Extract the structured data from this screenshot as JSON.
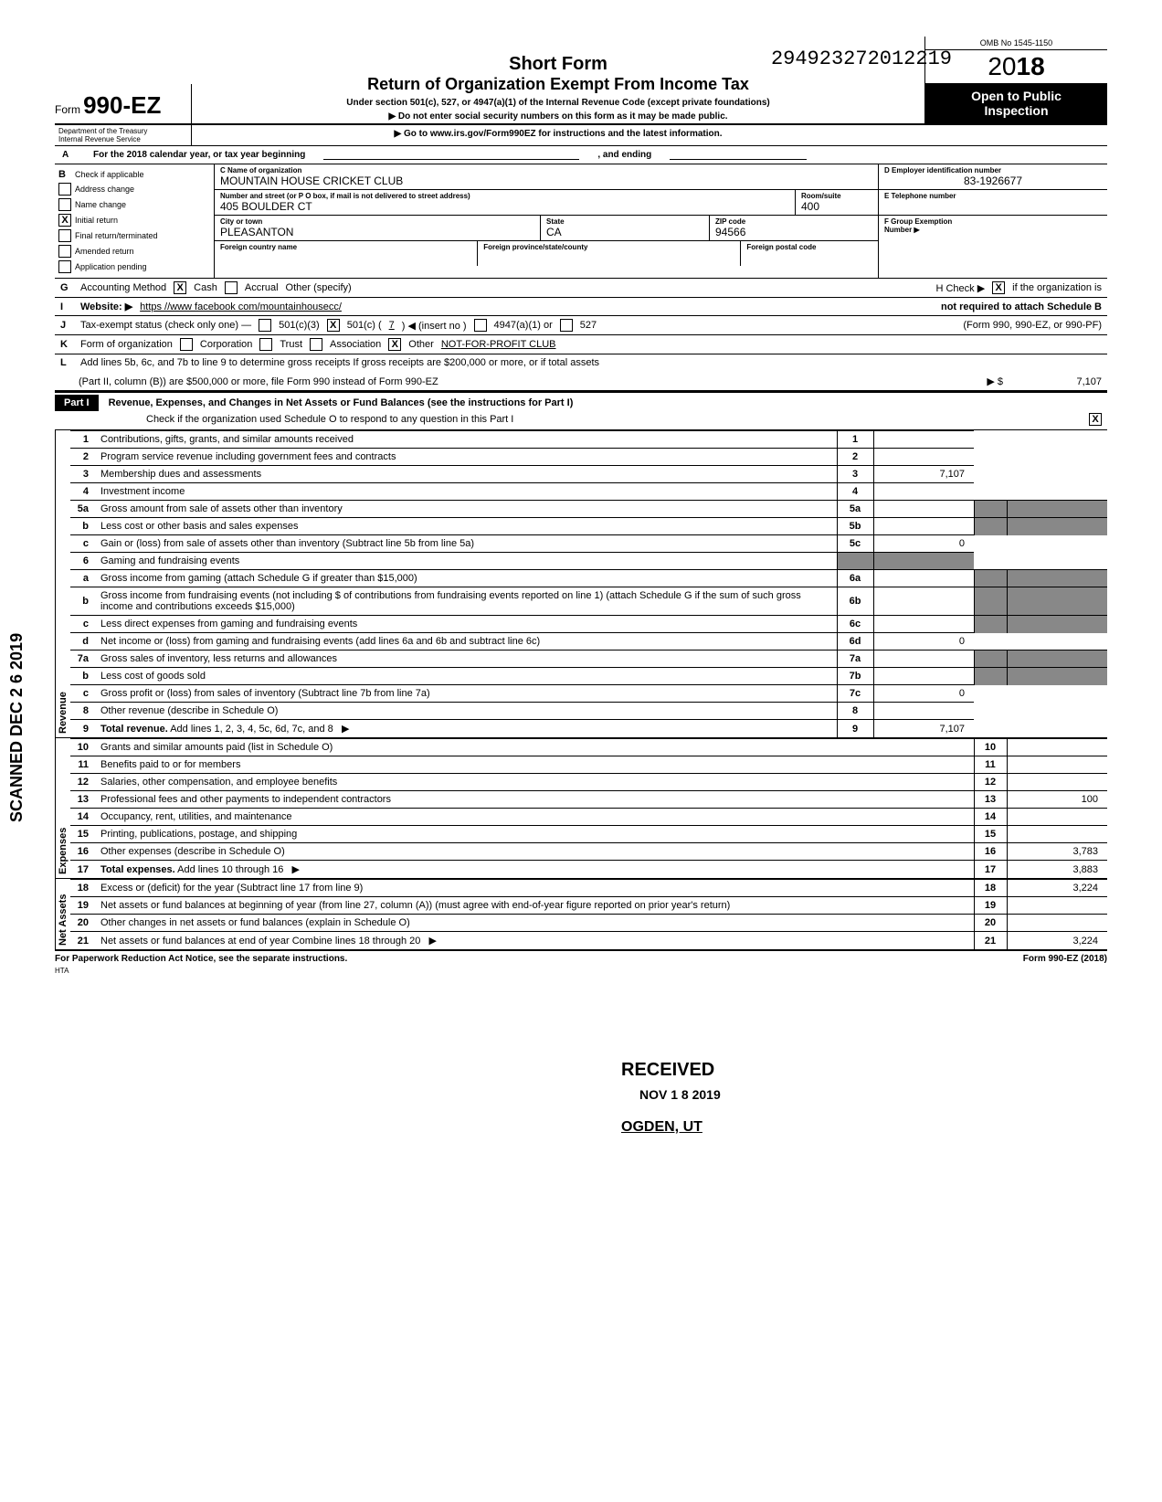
{
  "form": {
    "word": "Form",
    "number": "990-EZ"
  },
  "hand_number": "294923272012219",
  "omb": "OMB No 1545-1150",
  "year_prefix": "20",
  "year_bold": "18",
  "title1": "Short Form",
  "title2": "Return of Organization Exempt From Income Tax",
  "subtitle1": "Under section 501(c), 527, or 4947(a)(1) of the Internal Revenue Code (except private foundations)",
  "subtitle2": "Do not enter social security numbers on this form as it may be made public.",
  "subtitle3": "Go to www.irs.gov/Form990EZ for instructions and the latest information.",
  "black1": "Open to Public",
  "black2": "Inspection",
  "dept": "Department of the Treasury\nInternal Revenue Service",
  "row_a": {
    "letter": "A",
    "text": "For the 2018 calendar year, or tax year beginning",
    "and": ", and ending"
  },
  "col_b": {
    "letter": "B",
    "header": "Check if applicable",
    "items": [
      {
        "checked": false,
        "label": "Address change"
      },
      {
        "checked": false,
        "label": "Name change"
      },
      {
        "checked": true,
        "label": "Initial return"
      },
      {
        "checked": false,
        "label": "Final return/terminated"
      },
      {
        "checked": false,
        "label": "Amended return"
      },
      {
        "checked": false,
        "label": "Application pending"
      }
    ]
  },
  "col_c": {
    "name_label": "C Name of organization",
    "name": "MOUNTAIN HOUSE CRICKET CLUB",
    "addr_label": "Number and street (or P O box, if mail is not delivered to street address)",
    "room_label": "Room/suite",
    "addr": "405 BOULDER CT",
    "room": "400",
    "city_label": "City or town",
    "state_label": "State",
    "zip_label": "ZIP code",
    "city": "PLEASANTON",
    "state": "CA",
    "zip": "94566",
    "fc_label": "Foreign country name",
    "fp_label": "Foreign province/state/county",
    "fpc_label": "Foreign postal code"
  },
  "col_d": {
    "ein_label": "D Employer identification number",
    "ein": "83-1926677",
    "tel_label": "E Telephone number",
    "tel": "",
    "grp_label": "F Group Exemption\nNumber ▶",
    "grp": ""
  },
  "row_g": {
    "letter": "G",
    "label": "Accounting Method",
    "cash": "Cash",
    "accrual": "Accrual",
    "other": "Other (specify)",
    "cash_checked": true
  },
  "row_h": {
    "label": "H Check ▶",
    "checked": true,
    "text1": "if the organization is",
    "text2": "not required to attach Schedule B",
    "text3": "(Form 990, 990-EZ, or 990-PF)"
  },
  "row_i": {
    "letter": "I",
    "label": "Website: ▶",
    "value": "https //www facebook com/mountainhousecc/"
  },
  "row_j": {
    "letter": "J",
    "label": "Tax-exempt status (check only one) —",
    "c3": "501(c)(3)",
    "c": "501(c) (",
    "cnum": "7",
    "cins": ") ◀ (insert no )",
    "a1": "4947(a)(1) or",
    "s527": "527",
    "c_checked": true
  },
  "row_k": {
    "letter": "K",
    "label": "Form of organization",
    "corp": "Corporation",
    "trust": "Trust",
    "assoc": "Association",
    "other": "Other",
    "other_checked": true,
    "other_val": "NOT-FOR-PROFIT CLUB"
  },
  "row_l": {
    "letter": "L",
    "text1": "Add lines 5b, 6c, and 7b to line 9 to determine gross receipts If gross receipts are $200,000 or more, or if total assets",
    "text2": "(Part II, column (B)) are $500,000 or more, file Form 990 instead of Form 990-EZ",
    "arrow": "▶ $",
    "amount": "7,107"
  },
  "part1": {
    "label": "Part I",
    "title": "Revenue, Expenses, and Changes in Net Assets or Fund Balances (see the instructions for Part I)",
    "sub": "Check if the organization used Schedule O to respond to any question in this Part I",
    "sub_checked": true
  },
  "stamps": {
    "received": "RECEIVED",
    "date": "NOV 1 8 2019",
    "ogden": "OGDEN, UT"
  },
  "side_labels": {
    "revenue": "Revenue",
    "expenses": "Expenses",
    "netassets": "Net Assets"
  },
  "lines": {
    "l1": {
      "n": "1",
      "d": "Contributions, gifts, grants, and similar amounts received",
      "box": "1",
      "amt": ""
    },
    "l2": {
      "n": "2",
      "d": "Program service revenue including government fees and contracts",
      "box": "2",
      "amt": ""
    },
    "l3": {
      "n": "3",
      "d": "Membership dues and assessments",
      "box": "3",
      "amt": "7,107"
    },
    "l4": {
      "n": "4",
      "d": "Investment income",
      "box": "4",
      "amt": ""
    },
    "l5a": {
      "n": "5a",
      "d": "Gross amount from sale of assets other than inventory",
      "ib": "5a"
    },
    "l5b": {
      "n": "b",
      "d": "Less cost or other basis and sales expenses",
      "ib": "5b"
    },
    "l5c": {
      "n": "c",
      "d": "Gain or (loss) from sale of assets other than inventory (Subtract line 5b from line 5a)",
      "box": "5c",
      "amt": "0"
    },
    "l6": {
      "n": "6",
      "d": "Gaming and fundraising events"
    },
    "l6a": {
      "n": "a",
      "d": "Gross income from gaming (attach Schedule G if greater than $15,000)",
      "ib": "6a"
    },
    "l6b": {
      "n": "b",
      "d": "Gross income from fundraising events (not including   $                  of contributions from fundraising events reported on line 1) (attach Schedule G if the sum of such gross income and contributions exceeds $15,000)",
      "ib": "6b"
    },
    "l6c": {
      "n": "c",
      "d": "Less direct expenses from gaming and fundraising events",
      "ib": "6c"
    },
    "l6d": {
      "n": "d",
      "d": "Net income or (loss) from gaming and fundraising events (add lines 6a and 6b and subtract line 6c)",
      "box": "6d",
      "amt": "0"
    },
    "l7a": {
      "n": "7a",
      "d": "Gross sales of inventory, less returns and allowances",
      "ib": "7a"
    },
    "l7b": {
      "n": "b",
      "d": "Less cost of goods sold",
      "ib": "7b"
    },
    "l7c": {
      "n": "c",
      "d": "Gross profit or (loss) from sales of inventory (Subtract line 7b from line 7a)",
      "box": "7c",
      "amt": "0"
    },
    "l8": {
      "n": "8",
      "d": "Other revenue (describe in Schedule O)",
      "box": "8",
      "amt": ""
    },
    "l9": {
      "n": "9",
      "d": "Total revenue. Add lines 1, 2, 3, 4, 5c, 6d, 7c, and 8",
      "box": "9",
      "amt": "7,107",
      "arrow": true,
      "boldstart": "Total revenue."
    },
    "l10": {
      "n": "10",
      "d": "Grants and similar amounts paid (list in Schedule O)",
      "box": "10",
      "amt": ""
    },
    "l11": {
      "n": "11",
      "d": "Benefits paid to or for members",
      "box": "11",
      "amt": ""
    },
    "l12": {
      "n": "12",
      "d": "Salaries, other compensation, and employee benefits",
      "box": "12",
      "amt": ""
    },
    "l13": {
      "n": "13",
      "d": "Professional fees and other payments to independent contractors",
      "box": "13",
      "amt": "100"
    },
    "l14": {
      "n": "14",
      "d": "Occupancy, rent, utilities, and maintenance",
      "box": "14",
      "amt": ""
    },
    "l15": {
      "n": "15",
      "d": "Printing, publications, postage, and shipping",
      "box": "15",
      "amt": ""
    },
    "l16": {
      "n": "16",
      "d": "Other expenses (describe in Schedule O)",
      "box": "16",
      "amt": "3,783"
    },
    "l17": {
      "n": "17",
      "d": "Total expenses. Add lines 10 through 16",
      "box": "17",
      "amt": "3,883",
      "arrow": true,
      "boldstart": "Total expenses."
    },
    "l18": {
      "n": "18",
      "d": "Excess or (deficit) for the year (Subtract line 17 from line 9)",
      "box": "18",
      "amt": "3,224"
    },
    "l19": {
      "n": "19",
      "d": "Net assets or fund balances at beginning of year (from line 27, column (A)) (must agree with end-of-year figure reported on prior year's return)",
      "box": "19",
      "amt": ""
    },
    "l20": {
      "n": "20",
      "d": "Other changes in net assets or fund balances (explain in Schedule O)",
      "box": "20",
      "amt": ""
    },
    "l21": {
      "n": "21",
      "d": "Net assets or fund balances at end of year Combine lines 18 through 20",
      "box": "21",
      "amt": "3,224",
      "arrow": true
    }
  },
  "footer": {
    "left": "For Paperwork Reduction Act Notice, see the separate instructions.",
    "hta": "HTA",
    "right": "Form 990-EZ (2018)"
  },
  "scanned": "SCANNED DEC 2 6 2019"
}
